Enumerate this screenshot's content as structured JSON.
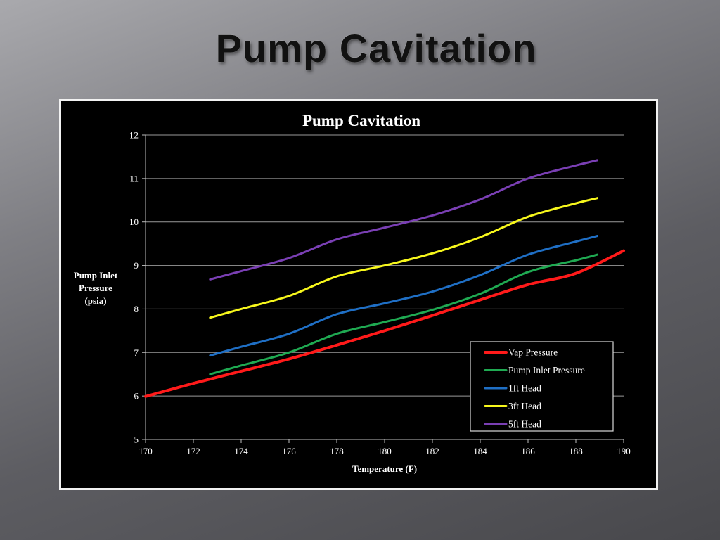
{
  "slide": {
    "title": "Pump Cavitation"
  },
  "chart_data": {
    "type": "line",
    "title": "Pump Cavitation",
    "xlabel": "Temperature (F)",
    "ylabel": "Pump Inlet Pressure (psia)",
    "ylabel_lines": [
      "Pump Inlet",
      "Pressure",
      "(psia)"
    ],
    "xlim": [
      170,
      190
    ],
    "ylim": [
      5,
      12
    ],
    "xticks": [
      170,
      172,
      174,
      176,
      178,
      180,
      182,
      184,
      186,
      188,
      190
    ],
    "yticks": [
      5,
      6,
      7,
      8,
      9,
      10,
      11,
      12
    ],
    "grid": "horizontal",
    "legend_position": "bottom-right",
    "series": [
      {
        "name": "Vap Pressure",
        "color": "#ff1a1a",
        "x": [
          170,
          172,
          174,
          176,
          178,
          180,
          182,
          184,
          186,
          188,
          190
        ],
        "y": [
          5.99,
          6.29,
          6.57,
          6.85,
          7.17,
          7.5,
          7.85,
          8.21,
          8.56,
          8.82,
          9.34
        ]
      },
      {
        "name": "Pump Inlet Pressure",
        "color": "#1faa52",
        "x": [
          172.7,
          174,
          176,
          178,
          180,
          182,
          184,
          186,
          188,
          188.9
        ],
        "y": [
          6.5,
          6.7,
          7.0,
          7.43,
          7.7,
          7.98,
          8.35,
          8.85,
          9.12,
          9.25
        ]
      },
      {
        "name": "1ft Head",
        "color": "#1f6fc5",
        "x": [
          172.7,
          174,
          176,
          178,
          180,
          182,
          184,
          186,
          188,
          188.9
        ],
        "y": [
          6.93,
          7.13,
          7.43,
          7.88,
          8.13,
          8.4,
          8.78,
          9.25,
          9.55,
          9.68
        ]
      },
      {
        "name": "3ft Head",
        "color": "#f7f71c",
        "x": [
          172.7,
          174,
          176,
          178,
          180,
          182,
          184,
          186,
          188,
          188.9
        ],
        "y": [
          7.8,
          8.0,
          8.3,
          8.75,
          9.0,
          9.28,
          9.65,
          10.12,
          10.43,
          10.55
        ]
      },
      {
        "name": "5ft Head",
        "color": "#7a3fb4",
        "x": [
          172.7,
          174,
          176,
          178,
          180,
          182,
          184,
          186,
          188,
          188.9
        ],
        "y": [
          8.68,
          8.87,
          9.17,
          9.6,
          9.87,
          10.15,
          10.52,
          11.0,
          11.3,
          11.42
        ]
      }
    ]
  }
}
